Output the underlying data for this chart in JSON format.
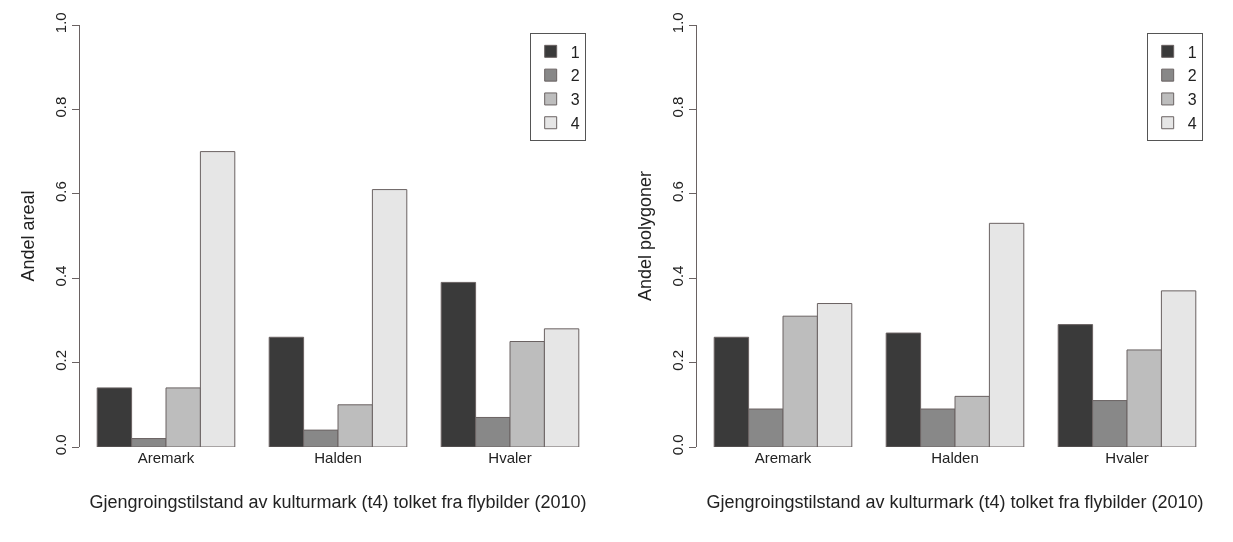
{
  "chart_data": [
    {
      "type": "bar",
      "categories": [
        "Aremark",
        "Halden",
        "Hvaler"
      ],
      "xlabel": "Gjengroingstilstand av kulturmark (t4) tolket fra flybilder (2010)",
      "ylabel": "Andel areal",
      "ylim": [
        0,
        1
      ],
      "yticks": [
        {
          "value": 0,
          "label": "0.0"
        },
        {
          "value": 0.2,
          "label": "0.2"
        },
        {
          "value": 0.4,
          "label": "0.4"
        },
        {
          "value": 0.6,
          "label": "0.6"
        },
        {
          "value": 0.8,
          "label": "0.8"
        },
        {
          "value": 1,
          "label": "1.0"
        }
      ],
      "grid": false,
      "legend": "top right",
      "series": [
        {
          "name": "1",
          "color": "#3a3a3a",
          "values": [
            0.14,
            0.26,
            0.39
          ]
        },
        {
          "name": "2",
          "color": "#888888",
          "values": [
            0.02,
            0.04,
            0.07
          ]
        },
        {
          "name": "3",
          "color": "#bdbdbd",
          "values": [
            0.14,
            0.1,
            0.25
          ]
        },
        {
          "name": "4",
          "color": "#e6e6e6",
          "values": [
            0.7,
            0.61,
            0.28
          ]
        }
      ]
    },
    {
      "type": "bar",
      "categories": [
        "Aremark",
        "Halden",
        "Hvaler"
      ],
      "xlabel": "Gjengroingstilstand av kulturmark (t4) tolket fra flybilder (2010)",
      "ylabel": "Andel polygoner",
      "ylim": [
        0,
        1
      ],
      "yticks": [
        {
          "value": 0,
          "label": "0.0"
        },
        {
          "value": 0.2,
          "label": "0.2"
        },
        {
          "value": 0.4,
          "label": "0.4"
        },
        {
          "value": 0.6,
          "label": "0.6"
        },
        {
          "value": 0.8,
          "label": "0.8"
        },
        {
          "value": 1,
          "label": "1.0"
        }
      ],
      "grid": false,
      "legend": "top right",
      "series": [
        {
          "name": "1",
          "color": "#3a3a3a",
          "values": [
            0.26,
            0.27,
            0.29
          ]
        },
        {
          "name": "2",
          "color": "#888888",
          "values": [
            0.09,
            0.09,
            0.11
          ]
        },
        {
          "name": "3",
          "color": "#bdbdbd",
          "values": [
            0.31,
            0.12,
            0.23
          ]
        },
        {
          "name": "4",
          "color": "#e6e6e6",
          "values": [
            0.34,
            0.53,
            0.37
          ]
        }
      ]
    }
  ]
}
